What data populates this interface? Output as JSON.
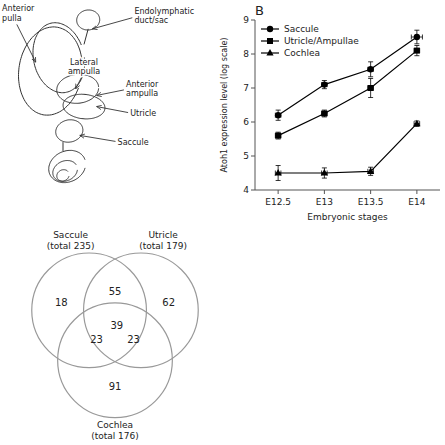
{
  "chart_data": [
    {
      "type": "diagram",
      "annotations": [
        "Endolymphatic\nduct/sac",
        "Lateral\nampulla",
        "Anterior\nampulla",
        "Utricle",
        "Saccule",
        "Anterior\npulla"
      ]
    },
    {
      "type": "line",
      "title": "B",
      "xlabel": "Embryonic stages",
      "ylabel": "Atoh1 expression level (log scale)",
      "categories": [
        "E12.5",
        "E13",
        "E13.5",
        "E14"
      ],
      "series": [
        {
          "name": "Saccule",
          "color": "black",
          "marker": "circle",
          "line_style": "solid",
          "values": [
            6.2,
            7.1,
            7.55,
            8.5
          ],
          "y_error": [
            0.15,
            0.12,
            0.22,
            0.2
          ],
          "x_error": [
            0.06,
            0.06,
            0.06,
            0.12
          ]
        },
        {
          "name": "Utricle/Ampullae",
          "color": "black",
          "marker": "square",
          "line_style": "solid",
          "values": [
            5.6,
            6.25,
            7.0,
            8.1
          ],
          "y_error": [
            0.1,
            0.1,
            0.28,
            0.15
          ],
          "x_error": [
            0.06,
            0.06,
            0.06,
            0.06
          ]
        },
        {
          "name": "Cochlea",
          "color": "black",
          "marker": "triangle",
          "line_style": "solid",
          "values": [
            4.5,
            4.5,
            4.55,
            5.95
          ],
          "y_error": [
            0.22,
            0.15,
            0.12,
            0.08
          ],
          "x_error": [
            0.06,
            0.06,
            0.06,
            0.06
          ]
        }
      ],
      "ylim": [
        4,
        9
      ],
      "yticks": [
        4,
        5,
        6,
        7,
        8,
        9
      ],
      "grid": false,
      "legend": "upper-left"
    },
    {
      "type": "venn",
      "series": [
        {
          "name": "Saccule\n(total 235)"
        },
        {
          "name": "Utricle\n(total 179)"
        },
        {
          "name": "Cochlea\n(total 176)"
        }
      ],
      "values": [
        18,
        62,
        91,
        55,
        23,
        23,
        39
      ]
    }
  ]
}
